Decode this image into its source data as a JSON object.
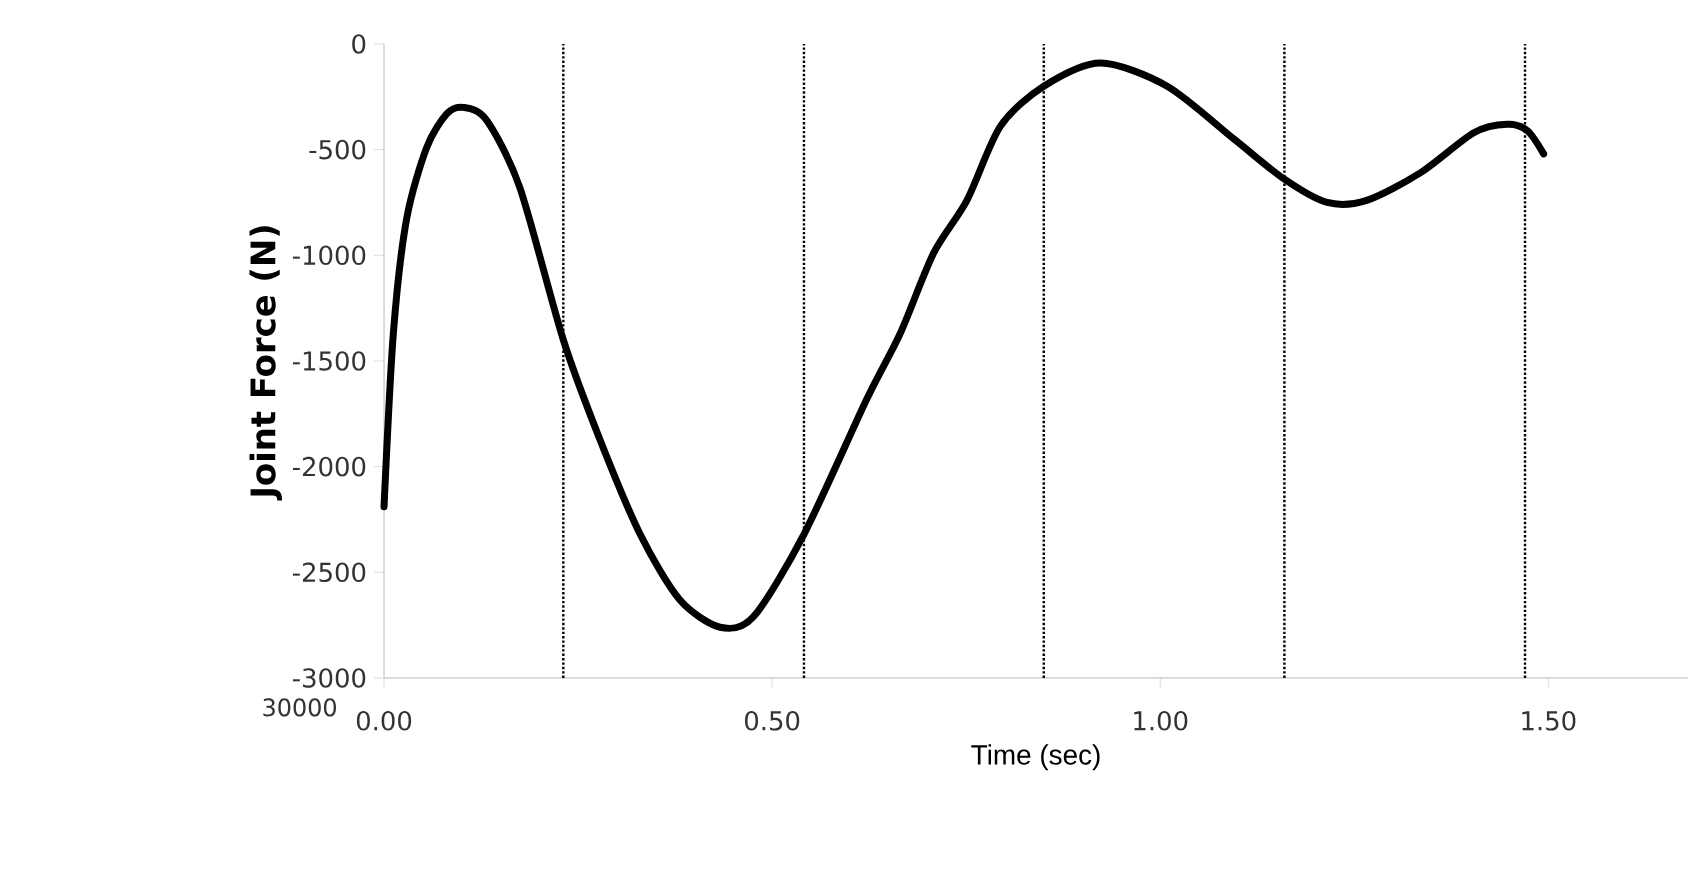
{
  "chart_data": {
    "type": "line",
    "xlabel": "Time (sec)",
    "ylabel": "Joint Force (N)",
    "xlim": [
      0,
      1.68
    ],
    "ylim": [
      -3000,
      0
    ],
    "xticks": [
      {
        "value": 0,
        "label": "0.00"
      },
      {
        "value": 0.5,
        "label": "0.50"
      },
      {
        "value": 1.0,
        "label": "1.00"
      },
      {
        "value": 1.5,
        "label": "1.50"
      }
    ],
    "yticks": [
      -3000,
      -2500,
      -2000,
      -1500,
      -1000,
      -500,
      0
    ],
    "grid": false,
    "marker": "none",
    "line_style": "solid",
    "series": [
      {
        "color": "#000000",
        "x": [
          0,
          0.012,
          0.029,
          0.055,
          0.081,
          0.102,
          0.132,
          0.175,
          0.231,
          0.278,
          0.33,
          0.381,
          0.433,
          0.476,
          0.541,
          0.622,
          0.665,
          0.708,
          0.751,
          0.794,
          0.85,
          0.923,
          1.009,
          1.095,
          1.16,
          1.215,
          1.266,
          1.335,
          1.404,
          1.447,
          1.473,
          1.494
        ],
        "values": [
          -2190,
          -1370,
          -830,
          -490,
          -330,
          -300,
          -360,
          -680,
          -1400,
          -1870,
          -2320,
          -2630,
          -2760,
          -2710,
          -2320,
          -1680,
          -1370,
          -990,
          -740,
          -390,
          -200,
          -90,
          -200,
          -450,
          -640,
          -750,
          -740,
          -610,
          -420,
          -380,
          -410,
          -520
        ]
      }
    ],
    "ref_lines": [
      {
        "axis": "x",
        "value": 0.231,
        "color": "#000000",
        "line_style": "dotted"
      },
      {
        "axis": "x",
        "value": 0.541,
        "color": "#000000",
        "line_style": "dotted"
      },
      {
        "axis": "x",
        "value": 0.85,
        "color": "#000000",
        "line_style": "dotted"
      },
      {
        "axis": "x",
        "value": 1.16,
        "color": "#000000",
        "line_style": "dotted"
      },
      {
        "axis": "x",
        "value": 1.47,
        "color": "#000000",
        "line_style": "dotted"
      }
    ],
    "annotations": [
      "30000"
    ]
  }
}
